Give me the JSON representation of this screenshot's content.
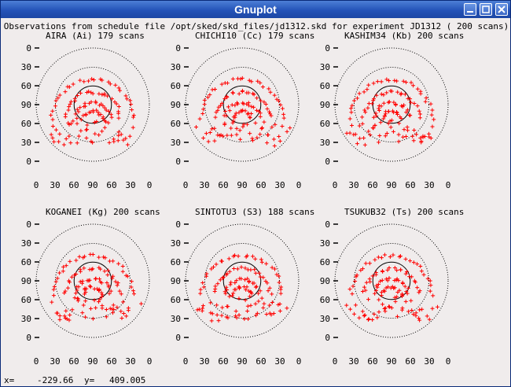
{
  "window": {
    "title": "Gnuplot"
  },
  "plot": {
    "heading": "Observations from schedule file /opt/sked/skd_files/jd1312.skd for experiment JD1312   (   200 scans)",
    "marker_color": "#ff0000",
    "y_ticks": [
      "0",
      "30",
      "60",
      "90",
      "60",
      "30",
      "0"
    ],
    "x_ticks": [
      "0",
      "30",
      "60",
      "90",
      "60",
      "30",
      "0"
    ],
    "panels": [
      {
        "label": "AIRA (Ai)  179 scans"
      },
      {
        "label": "CHICHI10 (Cc)  179 scans"
      },
      {
        "label": "KASHIM34 (Kb)  200 scans"
      },
      {
        "label": "KOGANEI (Kg)  200 scans"
      },
      {
        "label": "SINTOTU3 (S3)  188 scans"
      },
      {
        "label": "TSUKUB32 (Ts)  200 scans"
      }
    ]
  },
  "status": {
    "x_label": "x=",
    "x_value": "-229.66",
    "y_label": "y=",
    "y_value": "409.005"
  }
}
